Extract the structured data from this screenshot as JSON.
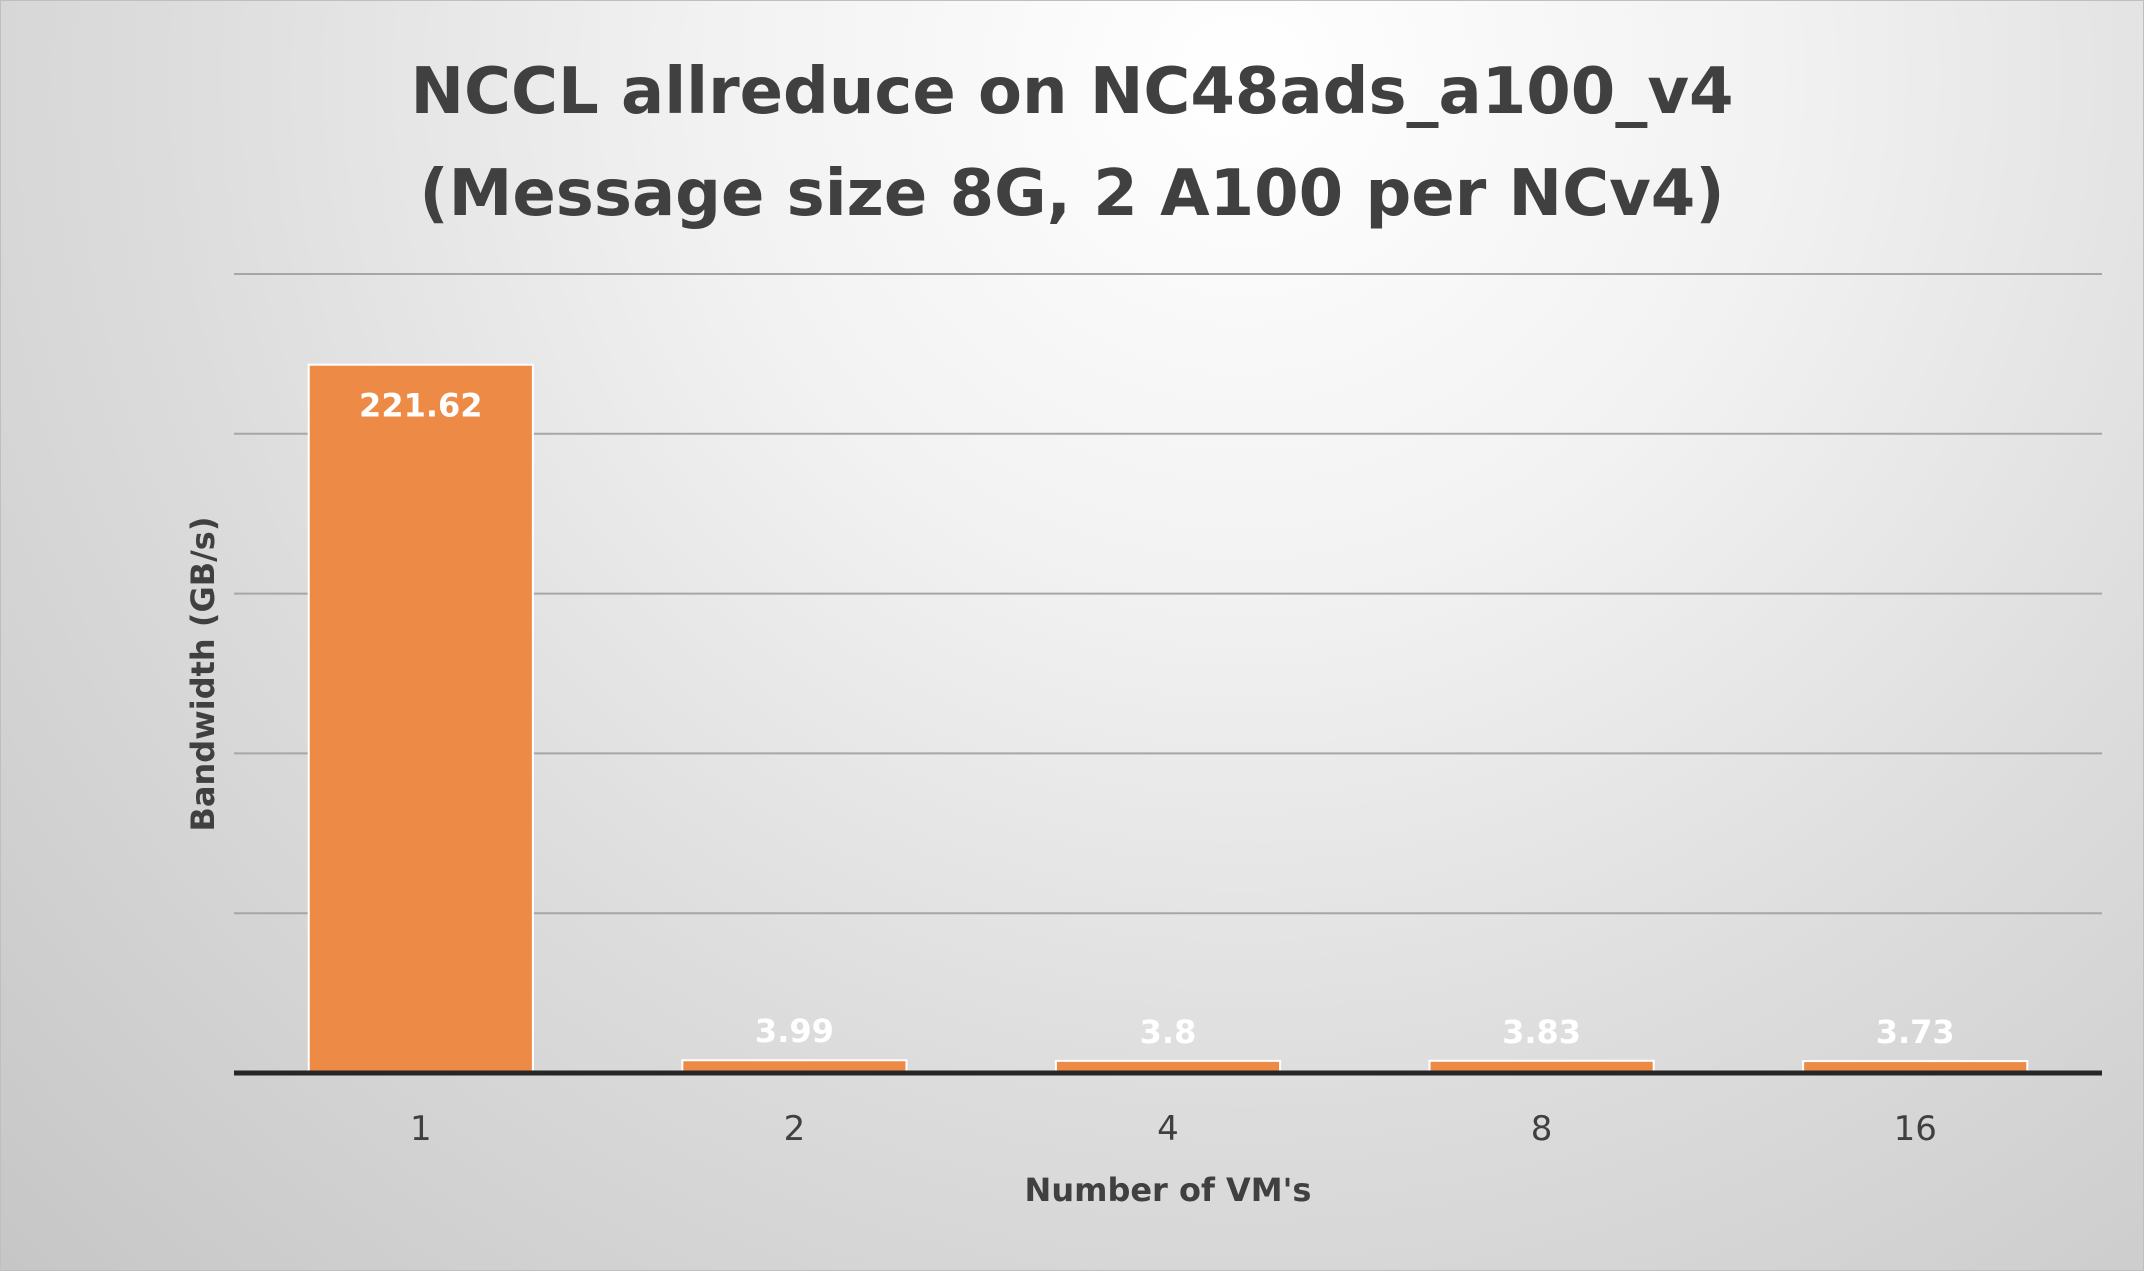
{
  "chart_data": {
    "type": "bar",
    "title": "NCCL allreduce on NC48ads_a100_v4",
    "subtitle": "(Message size 8G, 2 A100 per NCv4)",
    "xlabel": "Number of VM's",
    "ylabel": "Bandwidth (GB/s)",
    "categories": [
      "1",
      "2",
      "4",
      "8",
      "16"
    ],
    "values": [
      221.62,
      3.99,
      3.8,
      3.83,
      3.73
    ],
    "data_labels": [
      "221.62",
      "3.99",
      "3.8",
      "3.83",
      "3.73"
    ],
    "ylim": [
      0,
      250
    ],
    "y_gridline_step": 50,
    "y_tick_labels_shown": false,
    "grid": true,
    "legend": "none",
    "colors": {
      "bar": "#ed8b46",
      "bar_outline": "#ffffff",
      "gridline": "#a6a6a6",
      "axis": "#262626",
      "text": "#404040",
      "data_label": "#ffffff"
    }
  }
}
